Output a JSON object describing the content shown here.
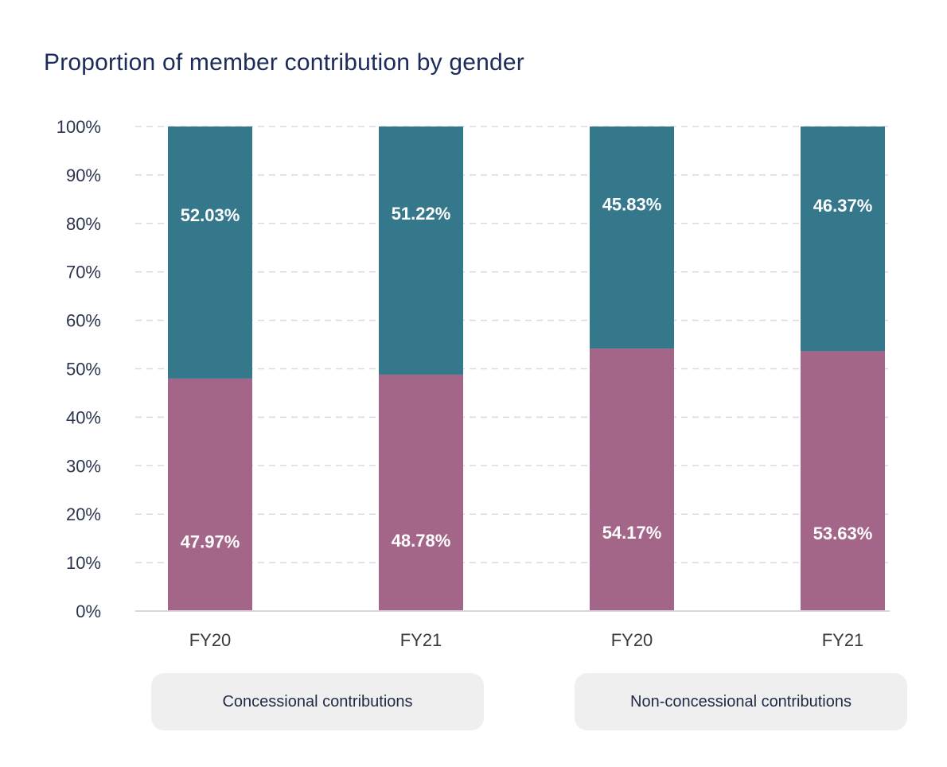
{
  "chart_data": {
    "type": "bar",
    "stacked": true,
    "title": "Proportion of member contribution by gender",
    "xlabel": "",
    "ylabel": "",
    "ylim": [
      0,
      100
    ],
    "yticks": [
      "0%",
      "10%",
      "20%",
      "30%",
      "40%",
      "50%",
      "60%",
      "70%",
      "80%",
      "90%",
      "100%"
    ],
    "grid": true,
    "categories": [
      "FY20",
      "FY21",
      "FY20",
      "FY21"
    ],
    "groups": [
      {
        "label": "Concessional contributions",
        "categories": [
          0,
          1
        ]
      },
      {
        "label": "Non-concessional contributions",
        "categories": [
          2,
          3
        ]
      }
    ],
    "series": [
      {
        "name": "Bottom segment",
        "color": "#a36688",
        "values": [
          47.97,
          48.78,
          54.17,
          53.63
        ],
        "labels": [
          "47.97%",
          "48.78%",
          "54.17%",
          "53.63%"
        ]
      },
      {
        "name": "Top segment",
        "color": "#35788c",
        "values": [
          52.03,
          51.22,
          45.83,
          46.37
        ],
        "labels": [
          "52.03%",
          "51.22%",
          "45.83%",
          "46.37%"
        ]
      }
    ],
    "legend": "none"
  }
}
